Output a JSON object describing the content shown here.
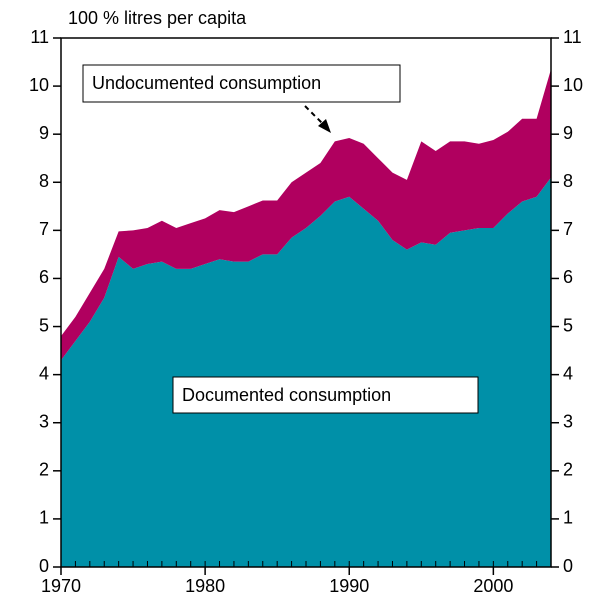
{
  "chart_data": {
    "type": "stacked_area",
    "y_label": "100 % litres per capita",
    "x": [
      1970,
      1971,
      1972,
      1973,
      1974,
      1975,
      1976,
      1977,
      1978,
      1979,
      1980,
      1981,
      1982,
      1983,
      1984,
      1985,
      1986,
      1987,
      1988,
      1989,
      1990,
      1991,
      1992,
      1993,
      1994,
      1995,
      1996,
      1997,
      1998,
      1999,
      2000,
      2001,
      2002,
      2003,
      2004
    ],
    "series": [
      {
        "name": "Documented consumption",
        "color": "#0090a8",
        "values": [
          4.3,
          4.7,
          5.1,
          5.6,
          6.45,
          6.2,
          6.3,
          6.35,
          6.2,
          6.2,
          6.3,
          6.4,
          6.35,
          6.35,
          6.5,
          6.5,
          6.85,
          7.05,
          7.3,
          7.6,
          7.7,
          7.45,
          7.2,
          6.8,
          6.6,
          6.75,
          6.7,
          6.95,
          7.0,
          7.05,
          7.05,
          7.35,
          7.6,
          7.7,
          8.1
        ]
      },
      {
        "name": "Undocumented consumption",
        "color": "#b0005f",
        "values": [
          0.5,
          0.5,
          0.6,
          0.6,
          0.53,
          0.8,
          0.75,
          0.85,
          0.85,
          0.95,
          0.95,
          1.02,
          1.03,
          1.15,
          1.12,
          1.12,
          1.15,
          1.15,
          1.1,
          1.25,
          1.22,
          1.35,
          1.3,
          1.4,
          1.45,
          2.1,
          1.95,
          1.9,
          1.85,
          1.75,
          1.83,
          1.7,
          1.72,
          1.62,
          2.25
        ]
      }
    ],
    "xlim": [
      1970,
      2004
    ],
    "xticks": [
      1970,
      1980,
      1990,
      2000
    ],
    "ylim": [
      0,
      11
    ],
    "yticks": [
      0,
      1,
      2,
      3,
      4,
      5,
      6,
      7,
      8,
      9,
      10,
      11
    ],
    "y2lim": [
      0,
      11
    ],
    "y2ticks": [
      0,
      1,
      2,
      3,
      4,
      5,
      6,
      7,
      8,
      9,
      10,
      11
    ]
  }
}
